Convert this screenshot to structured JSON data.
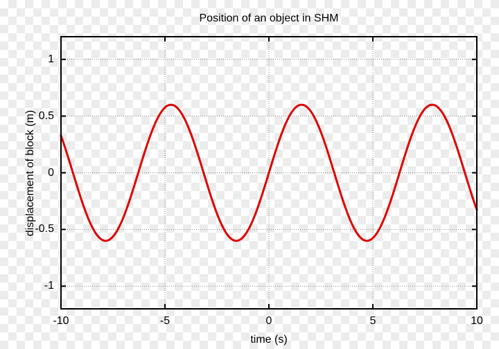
{
  "chart_data": {
    "type": "line",
    "title": "Position of an object in SHM",
    "xlabel": "time (s)",
    "ylabel": "displacement of block (m)",
    "xlim": [
      -10,
      10
    ],
    "ylim": [
      -1.2,
      1.2
    ],
    "grid": true,
    "legend": "none",
    "x_ticks": [
      {
        "value": -10,
        "label": "-10"
      },
      {
        "value": -5,
        "label": "-5"
      },
      {
        "value": 0,
        "label": "0"
      },
      {
        "value": 5,
        "label": "5"
      },
      {
        "value": 10,
        "label": "10"
      }
    ],
    "y_ticks": [
      {
        "value": 1,
        "label": "1"
      },
      {
        "value": 0.5,
        "label": "0.5"
      },
      {
        "value": 0,
        "label": "0"
      },
      {
        "value": -0.5,
        "label": "-0.5"
      },
      {
        "value": -1,
        "label": "-1"
      }
    ],
    "series": [
      {
        "name": "displacement of block",
        "function": "y(t) = 0.6 * sin(t)",
        "amplitude": 0.6,
        "angular_frequency": 1,
        "phase": 0,
        "color": "#e00000",
        "samples": [
          [
            -10,
            0.326
          ],
          [
            -9,
            -0.247
          ],
          [
            -8,
            -0.594
          ],
          [
            -7,
            -0.394
          ],
          [
            -6,
            0.168
          ],
          [
            -5,
            0.575
          ],
          [
            -4,
            0.454
          ],
          [
            -3,
            -0.085
          ],
          [
            -2,
            -0.546
          ],
          [
            -1,
            -0.505
          ],
          [
            0,
            0.0
          ],
          [
            1,
            0.505
          ],
          [
            2,
            0.546
          ],
          [
            3,
            0.085
          ],
          [
            4,
            -0.454
          ],
          [
            5,
            -0.575
          ],
          [
            6,
            -0.168
          ],
          [
            7,
            0.394
          ],
          [
            8,
            0.594
          ],
          [
            9,
            0.247
          ],
          [
            10,
            -0.326
          ]
        ]
      }
    ]
  },
  "colors": {
    "frame": "#000000",
    "grid": "#888888",
    "text": "#000000",
    "curve": "#e00000",
    "checker_light": "#ffffff",
    "checker_dark": "#ececec"
  }
}
